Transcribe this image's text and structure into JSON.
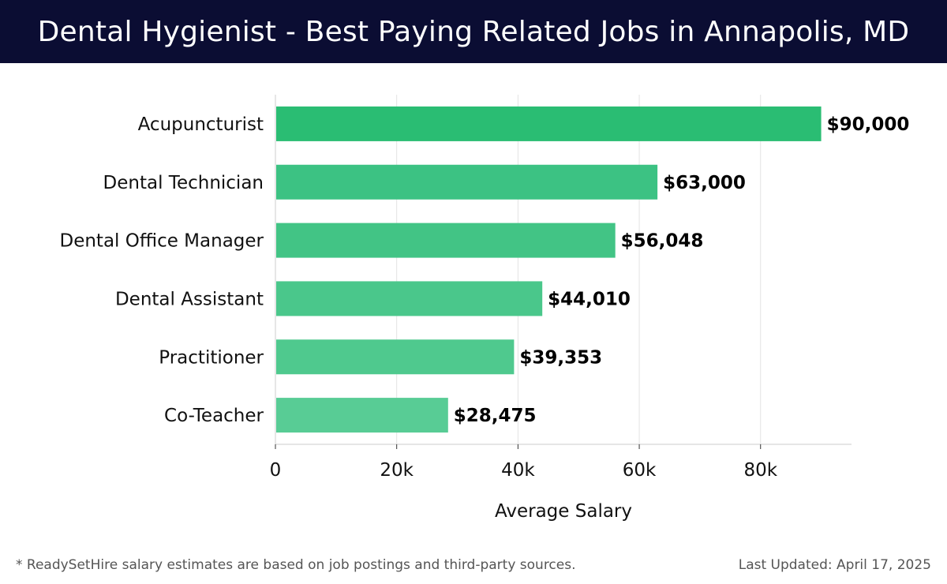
{
  "header": {
    "title": "Dental Hygienist - Best Paying Related Jobs in Annapolis, MD",
    "background_color": "#0b0d33"
  },
  "chart_data": {
    "type": "bar",
    "orientation": "horizontal",
    "categories": [
      "Acupuncturist",
      "Dental Technician",
      "Dental Office Manager",
      "Dental Assistant",
      "Practitioner",
      "Co-Teacher"
    ],
    "values": [
      90000,
      63000,
      56048,
      44010,
      39353,
      28475
    ],
    "value_labels": [
      "$90,000",
      "$63,000",
      "$56,048",
      "$44,010",
      "$39,353",
      "$28,475"
    ],
    "xlabel": "Average Salary",
    "xlim": [
      0,
      95000
    ],
    "xticks": [
      0,
      20000,
      40000,
      60000,
      80000
    ],
    "xtick_labels": [
      "0",
      "20k",
      "40k",
      "60k",
      "80k"
    ],
    "grid": true,
    "bar_colors": [
      "#2abd73",
      "#3cc283",
      "#42c485",
      "#4ac78b",
      "#4fc98e",
      "#58cc95"
    ]
  },
  "footer": {
    "note": "* ReadySetHire salary estimates are based on job postings and third-party sources.",
    "updated": "Last Updated: April 17, 2025"
  }
}
